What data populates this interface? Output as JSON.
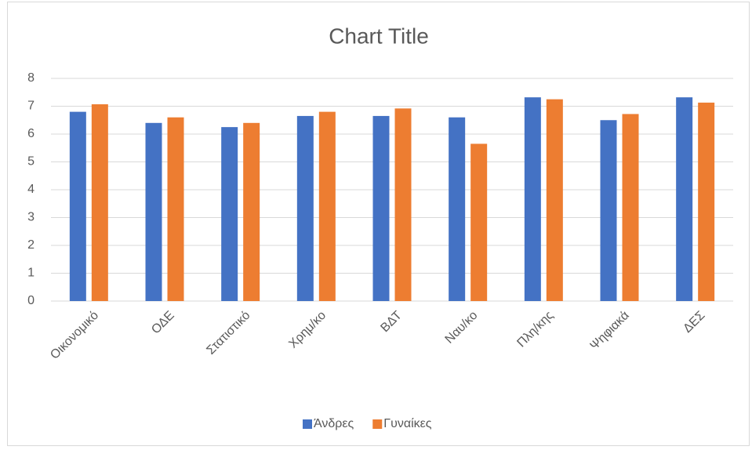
{
  "chart_data": {
    "type": "bar",
    "title": "Chart Title",
    "categories": [
      "Οικονομικό",
      "ΟΔΕ",
      "Στατιστικό",
      "Χρημ/κο",
      "ΒΔΤ",
      "Ναυ/κο",
      "Πλη/κης",
      "Ψηφιακά",
      "ΔΕΣ"
    ],
    "series": [
      {
        "name": "Άνδρες",
        "color": "#4472c4",
        "values": [
          6.8,
          6.4,
          6.25,
          6.65,
          6.65,
          6.6,
          7.32,
          6.5,
          7.32
        ]
      },
      {
        "name": "Γυναίκες",
        "color": "#ed7d31",
        "values": [
          7.07,
          6.6,
          6.4,
          6.8,
          6.92,
          5.65,
          7.25,
          6.72,
          7.13
        ]
      }
    ],
    "ylim": [
      0,
      8
    ],
    "yticks": [
      0,
      1,
      2,
      3,
      4,
      5,
      6,
      7,
      8
    ],
    "grid": true,
    "legend": "bottom"
  }
}
